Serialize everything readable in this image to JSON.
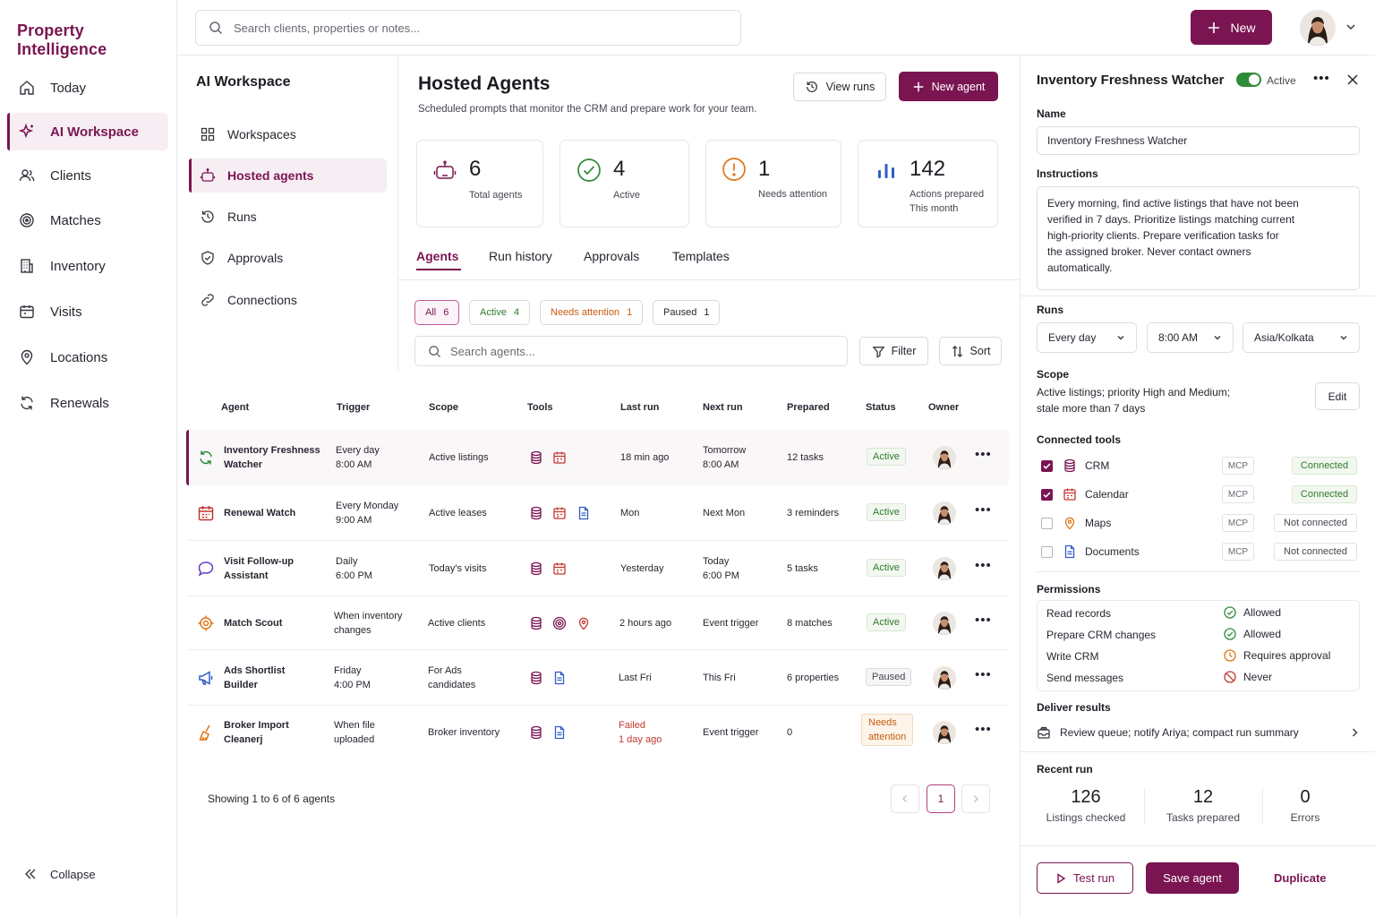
{
  "app": {
    "brand": "Property Intelligence"
  },
  "colors": {
    "accent": "#7a1552",
    "active": "#2e7a2e",
    "attention": "#c75a0f",
    "failed": "#c2372f"
  },
  "sidebar": {
    "items": [
      {
        "label": "Today",
        "icon": "home-icon"
      },
      {
        "label": "AI Workspace",
        "icon": "sparkle-icon",
        "active": true
      },
      {
        "label": "Clients",
        "icon": "users-icon"
      },
      {
        "label": "Matches",
        "icon": "target-icon"
      },
      {
        "label": "Inventory",
        "icon": "building-icon"
      },
      {
        "label": "Visits",
        "icon": "calendar-icon"
      },
      {
        "label": "Locations",
        "icon": "map-pin-icon"
      },
      {
        "label": "Renewals",
        "icon": "refresh-icon"
      }
    ],
    "collapse_label": "Collapse"
  },
  "topbar": {
    "search_placeholder": "Search clients, properties or notes...",
    "new_label": "New"
  },
  "workspace": {
    "title": "AI Workspace",
    "items": [
      {
        "label": "Workspaces",
        "icon": "grid-icon"
      },
      {
        "label": "Hosted agents",
        "icon": "robot-icon",
        "active": true
      },
      {
        "label": "Runs",
        "icon": "history-icon"
      },
      {
        "label": "Approvals",
        "icon": "shield-check-icon"
      },
      {
        "label": "Connections",
        "icon": "link-icon"
      }
    ]
  },
  "main": {
    "title": "Hosted Agents",
    "subtitle": "Scheduled prompts that monitor the CRM and prepare work for your team.",
    "view_runs_label": "View runs",
    "new_agent_label": "New agent",
    "stats": [
      {
        "value": "6",
        "label": "Total agents",
        "icon": "robot-icon"
      },
      {
        "value": "4",
        "label": "Active",
        "icon": "check-circle-icon"
      },
      {
        "value": "1",
        "label": "Needs attention",
        "icon": "alert-circle-icon"
      },
      {
        "value": "142",
        "label": "Actions prepared",
        "label2": "This month",
        "icon": "bar-chart-icon"
      }
    ],
    "tabs": [
      "Agents",
      "Run history",
      "Approvals",
      "Templates"
    ],
    "chips": [
      {
        "label": "All",
        "count": "6"
      },
      {
        "label": "Active",
        "count": "4"
      },
      {
        "label": "Needs attention",
        "count": "1"
      },
      {
        "label": "Paused",
        "count": "1"
      }
    ],
    "search_placeholder": "Search agents...",
    "filter_label": "Filter",
    "sort_label": "Sort",
    "columns": [
      "Agent",
      "Trigger",
      "Scope",
      "Tools",
      "Last run",
      "Next run",
      "Prepared",
      "Status",
      "Owner"
    ],
    "rows": [
      {
        "name": "Inventory Freshness",
        "name2": "Watcher",
        "trigger": "Every day",
        "trigger2": "8:00 AM",
        "scope": "Active listings",
        "scope2": "",
        "tools": [
          "database-icon",
          "calendar-icon"
        ],
        "last": "18 min ago",
        "last2": "",
        "next": "Tomorrow",
        "next2": "8:00 AM",
        "prepared": "12 tasks",
        "status": "Active",
        "status2": "",
        "icon": "refresh-icon"
      },
      {
        "name": "Renewal Watch",
        "name2": "",
        "trigger": "Every Monday",
        "trigger2": "9:00 AM",
        "scope": "Active leases",
        "scope2": "",
        "tools": [
          "database-icon",
          "calendar-icon",
          "document-icon"
        ],
        "last": "Mon",
        "last2": "",
        "next": "Next Mon",
        "next2": "",
        "prepared": "3 reminders",
        "status": "Active",
        "status2": "",
        "icon": "calendar-icon"
      },
      {
        "name": "Visit Follow-up",
        "name2": "Assistant",
        "trigger": "Daily",
        "trigger2": "6:00 PM",
        "scope": "Today's visits",
        "scope2": "",
        "tools": [
          "database-icon",
          "calendar-icon"
        ],
        "last": "Yesterday",
        "last2": "",
        "next": "Today",
        "next2": "6:00 PM",
        "prepared": "5 tasks",
        "status": "Active",
        "status2": "",
        "icon": "chat-icon"
      },
      {
        "name": "Match Scout",
        "name2": "",
        "trigger": "When inventory",
        "trigger2": "changes",
        "scope": "Active clients",
        "scope2": "",
        "tools": [
          "database-icon",
          "target-icon",
          "map-pin-icon"
        ],
        "last": "2 hours ago",
        "last2": "",
        "next": "Event trigger",
        "next2": "",
        "prepared": "8 matches",
        "status": "Active",
        "status2": "",
        "icon": "target-icon"
      },
      {
        "name": "Ads Shortlist",
        "name2": "Builder",
        "trigger": "Friday",
        "trigger2": "4:00 PM",
        "scope": "For Ads",
        "scope2": "candidates",
        "tools": [
          "database-icon",
          "document-icon"
        ],
        "last": "Last Fri",
        "last2": "",
        "next": "This Fri",
        "next2": "",
        "prepared": "6 properties",
        "status": "Paused",
        "status2": "",
        "icon": "megaphone-icon"
      },
      {
        "name": "Broker Import",
        "name2": "Cleanerj",
        "trigger": "When file",
        "trigger2": "uploaded",
        "scope": "Broker inventory",
        "scope2": "",
        "tools": [
          "database-icon",
          "document-icon"
        ],
        "last": "Failed",
        "last2": "1 day ago",
        "next": "Event trigger",
        "next2": "",
        "prepared": "0",
        "status": "Needs",
        "status2": "attention",
        "icon": "broom-icon"
      }
    ],
    "showing": "Showing 1 to 6 of 6 agents",
    "page": "1"
  },
  "panel": {
    "title": "Inventory Freshness Watcher",
    "active_label": "Active",
    "name_label": "Name",
    "name_value": "Inventory Freshness Watcher",
    "instructions_label": "Instructions",
    "instructions": [
      "Every morning, find active listings that have not been",
      "verified in 7 days. Prioritize listings matching current",
      "high-priority clients. Prepare verification tasks for",
      "the assigned broker. Never contact owners",
      "automatically."
    ],
    "runs_label": "Runs",
    "runs_frequency": "Every day",
    "runs_time": "8:00 AM",
    "runs_timezone": "Asia/Kolkata",
    "scope_label": "Scope",
    "scope_line1": "Active listings; priority High and Medium;",
    "scope_line2": "stale more than 7 days",
    "edit_label": "Edit",
    "tools_label": "Connected tools",
    "tools": [
      {
        "name": "CRM",
        "badge": "MCP",
        "status": "Connected",
        "checked": true,
        "icon": "database-icon"
      },
      {
        "name": "Calendar",
        "badge": "MCP",
        "status": "Connected",
        "checked": true,
        "icon": "calendar-icon"
      },
      {
        "name": "Maps",
        "badge": "MCP",
        "status": "Not connected",
        "checked": false,
        "icon": "map-pin-icon"
      },
      {
        "name": "Documents",
        "badge": "MCP",
        "status": "Not connected",
        "checked": false,
        "icon": "document-icon"
      }
    ],
    "permissions_label": "Permissions",
    "permissions": [
      {
        "name": "Read records",
        "value": "Allowed",
        "kind": "ok"
      },
      {
        "name": "Prepare CRM changes",
        "value": "Allowed",
        "kind": "ok"
      },
      {
        "name": "Write CRM",
        "value": "Requires approval",
        "kind": "wait"
      },
      {
        "name": "Send messages",
        "value": "Never",
        "kind": "no"
      }
    ],
    "deliver_label": "Deliver results",
    "deliver_value": "Review queue; notify Ariya; compact run summary",
    "recent_label": "Recent run",
    "recent": [
      {
        "value": "126",
        "label": "Listings checked"
      },
      {
        "value": "12",
        "label": "Tasks prepared"
      },
      {
        "value": "0",
        "label": "Errors"
      }
    ],
    "test_run_label": "Test run",
    "save_label": "Save agent",
    "duplicate_label": "Duplicate"
  }
}
